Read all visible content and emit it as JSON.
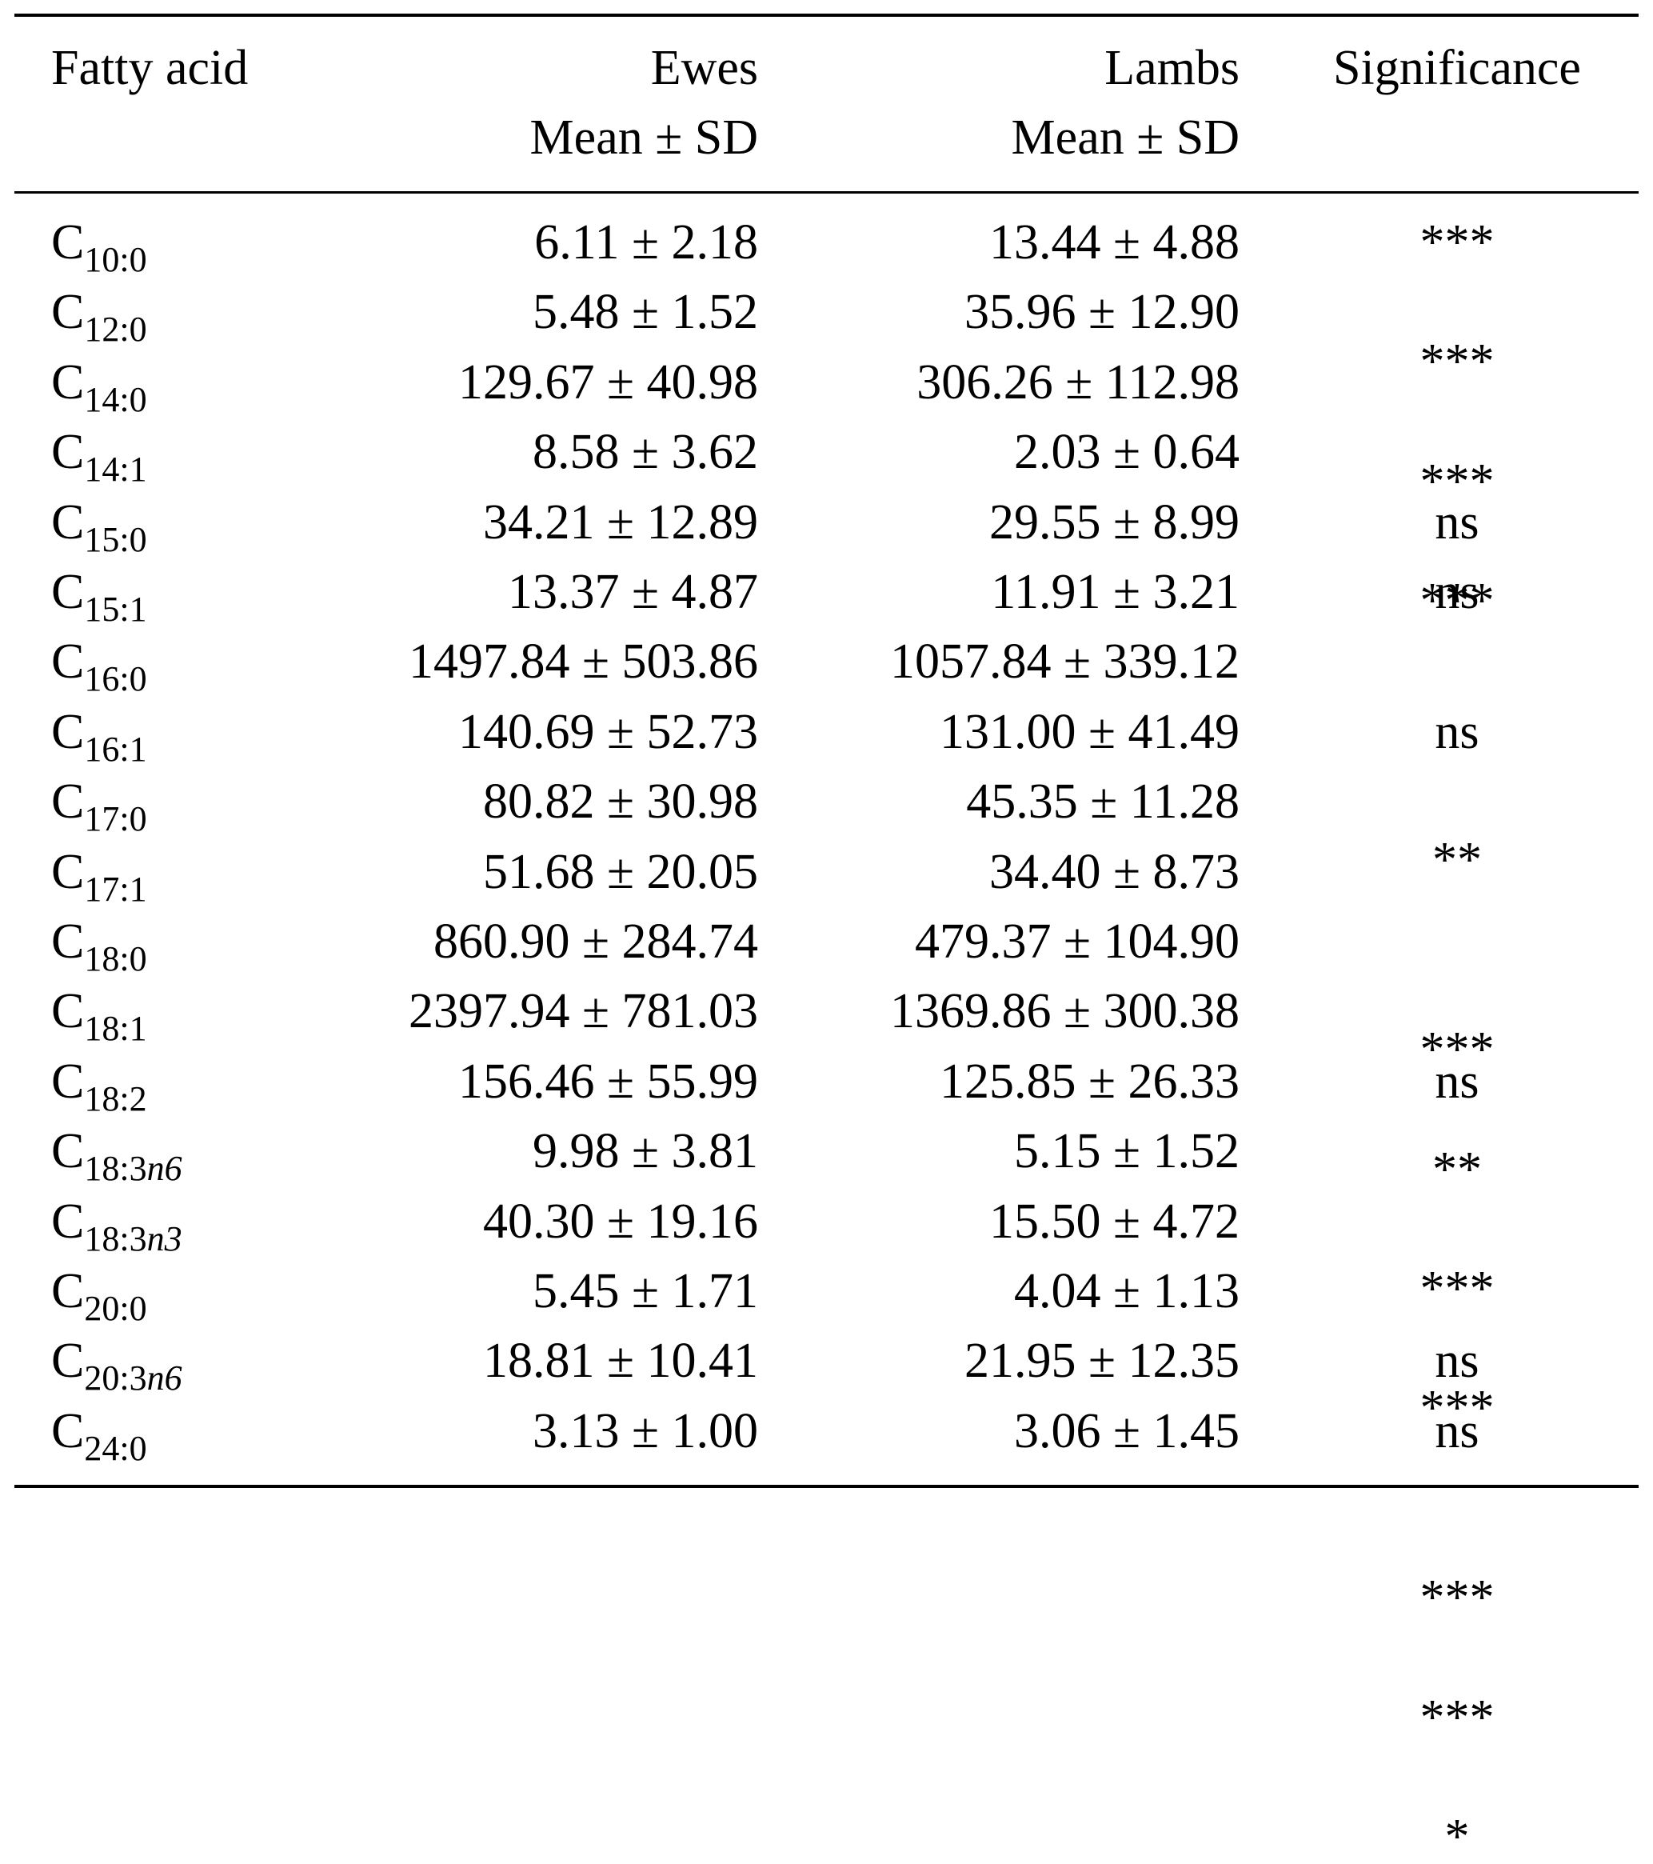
{
  "table": {
    "headers": {
      "fatty_acid": "Fatty acid",
      "ewes": "Ewes",
      "ewes_sub": "Mean ± SD",
      "lambs": "Lambs",
      "lambs_sub": "Mean ± SD",
      "significance": "Significance"
    },
    "rows": [
      {
        "base": "C",
        "sub": "10:0",
        "sub_suffix": "",
        "ewes": "6.11 ± 2.18",
        "lambs": "13.44 ± 4.88",
        "sig": "***"
      },
      {
        "base": "C",
        "sub": "12:0",
        "sub_suffix": "",
        "ewes": "5.48 ± 1.52",
        "lambs": "35.96 ± 12.90",
        "sig": "***"
      },
      {
        "base": "C",
        "sub": "14:0",
        "sub_suffix": "",
        "ewes": "129.67 ± 40.98",
        "lambs": "306.26 ± 112.98",
        "sig": "***"
      },
      {
        "base": "C",
        "sub": "14:1",
        "sub_suffix": "",
        "ewes": "8.58 ± 3.62",
        "lambs": "2.03 ± 0.64",
        "sig": "***"
      },
      {
        "base": "C",
        "sub": "15:0",
        "sub_suffix": "",
        "ewes": "34.21 ± 12.89",
        "lambs": "29.55 ± 8.99",
        "sig": "ns"
      },
      {
        "base": "C",
        "sub": "15:1",
        "sub_suffix": "",
        "ewes": "13.37 ± 4.87",
        "lambs": "11.91 ± 3.21",
        "sig": "ns"
      },
      {
        "base": "C",
        "sub": "16:0",
        "sub_suffix": "",
        "ewes": "1497.84 ± 503.86",
        "lambs": "1057.84 ± 339.12",
        "sig": "**"
      },
      {
        "base": "C",
        "sub": "16:1",
        "sub_suffix": "",
        "ewes": "140.69 ± 52.73",
        "lambs": "131.00 ± 41.49",
        "sig": "ns"
      },
      {
        "base": "C",
        "sub": "17:0",
        "sub_suffix": "",
        "ewes": "80.82 ± 30.98",
        "lambs": "45.35 ± 11.28",
        "sig": "***"
      },
      {
        "base": "C",
        "sub": "17:1",
        "sub_suffix": "",
        "ewes": "51.68 ± 20.05",
        "lambs": "34.40 ± 8.73",
        "sig": "**"
      },
      {
        "base": "C",
        "sub": "18:0",
        "sub_suffix": "",
        "ewes": "860.90 ± 284.74",
        "lambs": "479.37 ± 104.90",
        "sig": "***"
      },
      {
        "base": "C",
        "sub": "18:1",
        "sub_suffix": "",
        "ewes": "2397.94 ± 781.03",
        "lambs": "1369.86 ± 300.38",
        "sig": "***"
      },
      {
        "base": "C",
        "sub": "18:2",
        "sub_suffix": "",
        "ewes": "156.46 ± 55.99",
        "lambs": "125.85 ± 26.33",
        "sig": "ns"
      },
      {
        "base": "C",
        "sub": "18:3",
        "sub_suffix": "n6",
        "ewes": "9.98 ± 3.81",
        "lambs": "5.15 ± 1.52",
        "sig": "***"
      },
      {
        "base": "C",
        "sub": "18:3",
        "sub_suffix": "n3",
        "ewes": "40.30 ± 19.16",
        "lambs": "15.50 ± 4.72",
        "sig": "***"
      },
      {
        "base": "C",
        "sub": "20:0",
        "sub_suffix": "",
        "ewes": "5.45 ± 1.71",
        "lambs": "4.04 ± 1.13",
        "sig": "*"
      },
      {
        "base": "C",
        "sub": "20:3",
        "sub_suffix": "n6",
        "ewes": "18.81 ± 10.41",
        "lambs": "21.95 ± 12.35",
        "sig": "ns"
      },
      {
        "base": "C",
        "sub": "24:0",
        "sub_suffix": "",
        "ewes": "3.13 ± 1.00",
        "lambs": "3.06 ± 1.45",
        "sig": "ns"
      }
    ]
  }
}
